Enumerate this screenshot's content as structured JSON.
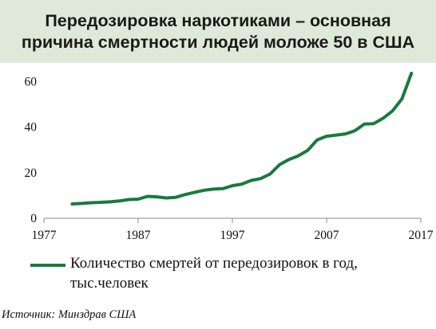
{
  "chart_data": {
    "type": "line",
    "title": "Передозировка наркотиками – основная причина смертности людей моложе 50 в США",
    "x_ticks": [
      "1977",
      "1987",
      "1997",
      "2007",
      "2017"
    ],
    "y_ticks": [
      "0",
      "20",
      "40",
      "60"
    ],
    "xlim": [
      1977,
      2017
    ],
    "ylim": [
      0,
      65
    ],
    "grid": false,
    "legend_position": "bottom",
    "series": [
      {
        "name": "Количество смертей от передозировок в год, тыс.человек",
        "color": "#1a7a3e",
        "x": [
          1980,
          1981,
          1982,
          1983,
          1984,
          1985,
          1986,
          1987,
          1988,
          1989,
          1990,
          1991,
          1992,
          1993,
          1994,
          1995,
          1996,
          1997,
          1998,
          1999,
          2000,
          2001,
          2002,
          2003,
          2004,
          2005,
          2006,
          2007,
          2008,
          2009,
          2010,
          2011,
          2012,
          2013,
          2014,
          2015,
          2016
        ],
        "y": [
          6.3,
          6.5,
          6.8,
          7.0,
          7.2,
          7.6,
          8.2,
          8.4,
          9.6,
          9.4,
          8.9,
          9.2,
          10.4,
          11.4,
          12.3,
          12.8,
          13.0,
          14.3,
          15.0,
          16.6,
          17.4,
          19.4,
          23.5,
          25.8,
          27.4,
          29.8,
          34.4,
          36.0,
          36.5,
          37.0,
          38.4,
          41.3,
          41.5,
          43.9,
          47.1,
          52.4,
          63.6
        ]
      }
    ]
  },
  "legend": {
    "label": "Количество смертей от передозировок в год, тыс.человек"
  },
  "source": "Источник: Минздрав США"
}
